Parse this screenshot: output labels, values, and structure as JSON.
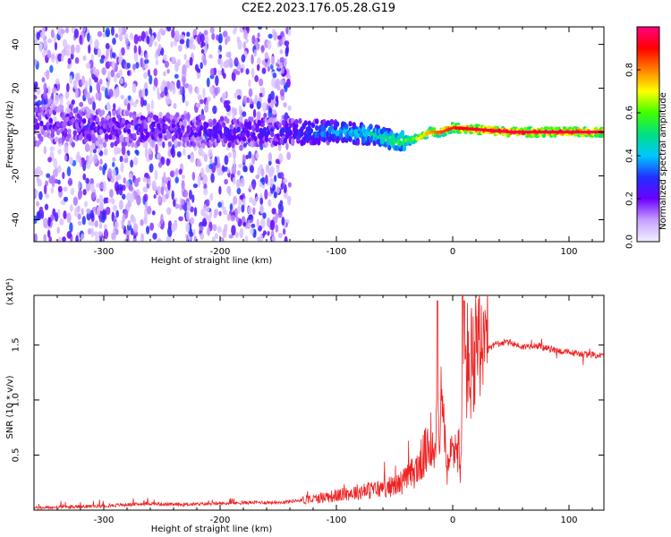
{
  "figure": {
    "title": "C2E2.2023.176.05.28.G19"
  },
  "colors": {
    "axes": "#000000",
    "snr_line": "#ee2222",
    "colormap": [
      "#f0f0ff",
      "#c8a0ff",
      "#6a00ff",
      "#2030ff",
      "#00c8ff",
      "#00e080",
      "#40ff00",
      "#ffff00",
      "#ff8000",
      "#ff0000",
      "#ff0080"
    ]
  },
  "chart_data": [
    {
      "type": "heatmap",
      "name": "spectrogram",
      "xlabel": "Height of straight line (km)",
      "ylabel": "Frequency (Hz)",
      "xlim": [
        -360,
        130
      ],
      "ylim": [
        -50,
        48
      ],
      "x_ticks": [
        -300,
        -200,
        -100,
        0,
        100
      ],
      "y_ticks": [
        -40,
        -20,
        0,
        20,
        40
      ],
      "colorbar": {
        "label": "Normalized spectral amplitude",
        "range": [
          0.0,
          1.0
        ],
        "ticks": [
          0.0,
          0.2,
          0.4,
          0.6,
          0.8
        ]
      },
      "ridge": [
        {
          "x": -340,
          "f": 3
        },
        {
          "x": -300,
          "f": 2
        },
        {
          "x": -250,
          "f": 1
        },
        {
          "x": -200,
          "f": 0
        },
        {
          "x": -150,
          "f": 0
        },
        {
          "x": -100,
          "f": 0
        },
        {
          "x": -70,
          "f": -1
        },
        {
          "x": -50,
          "f": -4
        },
        {
          "x": -40,
          "f": -4
        },
        {
          "x": -30,
          "f": -3
        },
        {
          "x": -20,
          "f": 0
        },
        {
          "x": -10,
          "f": 0
        },
        {
          "x": 0,
          "f": 2
        },
        {
          "x": 50,
          "f": 0
        },
        {
          "x": 130,
          "f": 0
        }
      ],
      "ridge_amplitude": [
        {
          "x": -340,
          "a": 0.2
        },
        {
          "x": -250,
          "a": 0.2
        },
        {
          "x": -150,
          "a": 0.25
        },
        {
          "x": -110,
          "a": 0.35
        },
        {
          "x": -70,
          "a": 0.45
        },
        {
          "x": -50,
          "a": 0.55
        },
        {
          "x": -30,
          "a": 0.7
        },
        {
          "x": -10,
          "a": 0.85
        },
        {
          "x": 20,
          "a": 0.95
        },
        {
          "x": 130,
          "a": 0.95
        }
      ]
    },
    {
      "type": "line",
      "name": "snr",
      "xlabel": "Height of straight line (km)",
      "ylabel": "SNR (10 * v/v)",
      "y_multiplier": "(x10⁴)",
      "xlim": [
        -360,
        130
      ],
      "ylim": [
        0,
        1.95
      ],
      "x_ticks": [
        -300,
        -200,
        -100,
        0,
        100
      ],
      "y_ticks": [
        0.5,
        1.0,
        1.5
      ],
      "series": [
        {
          "x": [
            -360,
            -320,
            -280,
            -260,
            -240,
            -200,
            -170,
            -150,
            -130,
            -120,
            -110,
            -100,
            -90,
            -80,
            -70,
            -60,
            -50,
            -40,
            -30,
            -25,
            -20,
            -15,
            -12,
            -10,
            -8,
            -5,
            -3,
            0,
            3,
            5,
            7,
            8,
            9,
            10,
            12,
            15,
            20,
            25,
            30,
            35,
            40,
            50,
            60,
            70,
            80,
            90,
            100,
            110,
            120,
            130
          ],
          "y": [
            0.02,
            0.03,
            0.05,
            0.06,
            0.05,
            0.06,
            0.07,
            0.07,
            0.09,
            0.1,
            0.12,
            0.13,
            0.15,
            0.17,
            0.18,
            0.2,
            0.22,
            0.28,
            0.38,
            0.5,
            0.55,
            0.7,
            0.85,
            0.9,
            0.8,
            0.35,
            0.4,
            0.6,
            0.55,
            0.6,
            0.3,
            0.9,
            1.2,
            1.25,
            1.35,
            1.3,
            1.35,
            1.4,
            1.45,
            1.5,
            1.52,
            1.52,
            1.48,
            1.5,
            1.47,
            1.45,
            1.43,
            1.42,
            1.41,
            1.4
          ]
        }
      ]
    }
  ]
}
